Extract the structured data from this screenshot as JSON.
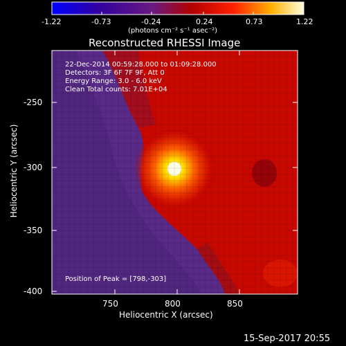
{
  "colorbar": {
    "ticks": [
      "-1.22",
      "-0.73",
      "-0.24",
      "0.24",
      "0.73",
      "1.22"
    ],
    "units": "(photons cm⁻² s⁻¹ asec⁻²)"
  },
  "plot": {
    "title": "Reconstructed RHESSI Image",
    "xlabel": "Heliocentric X (arcsec)",
    "ylabel": "Heliocentric Y (arcsec)",
    "xticks": [
      "750",
      "800",
      "850"
    ],
    "yticks": [
      "-250",
      "-300",
      "-350",
      "-400"
    ],
    "info": [
      "22-Dec-2014 00:59:28.000 to 01:09:28.000",
      "Detectors: 3F 6F 7F 9F, Att 0",
      "Energy Range: 3.0 - 6.0 keV",
      "Clean     Total counts: 7.01E+04"
    ],
    "peak_label": "Position of Peak = [798,-303]"
  },
  "footer_date": "15-Sep-2017 20:55"
}
